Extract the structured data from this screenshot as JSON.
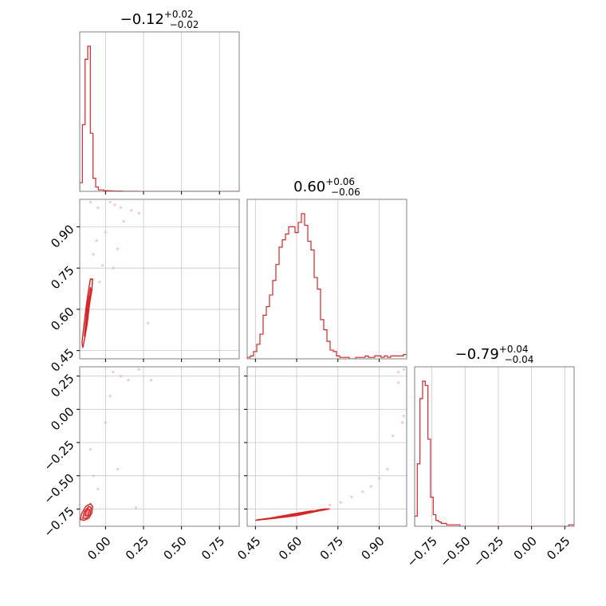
{
  "colors": {
    "accent": "#d62728",
    "frame": "#808080",
    "grid": "#c8c8c8",
    "scatter": "#f4b9ba"
  },
  "chart_data": {
    "type": "corner",
    "grid": true,
    "parameters": [
      {
        "median": "−0.12",
        "plus": "+0.02",
        "minus": "−0.02",
        "range": [
          -0.17,
          0.88
        ]
      },
      {
        "median": "0.60",
        "plus": "+0.06",
        "minus": "−0.06",
        "range": [
          0.42,
          1.0
        ]
      },
      {
        "median": "−0.79",
        "plus": "+0.04",
        "minus": "−0.04",
        "range": [
          -0.88,
          0.32
        ]
      }
    ],
    "ticks": [
      {
        "values": [
          0.0,
          0.25,
          0.5,
          0.75
        ],
        "labels": [
          "0.00",
          "0.25",
          "0.50",
          "0.75"
        ]
      },
      {
        "values": [
          0.45,
          0.6,
          0.75,
          0.9
        ],
        "labels": [
          "0.45",
          "0.60",
          "0.75",
          "0.90"
        ]
      },
      {
        "values": [
          -0.75,
          -0.5,
          -0.25,
          0.0,
          0.25
        ],
        "labels": [
          "−0.75",
          "−0.50",
          "−0.25",
          "0.00",
          "0.25"
        ]
      }
    ],
    "histograms": [
      {
        "param": 0,
        "bin_start": -0.17,
        "bin_width": 0.0175,
        "counts": [
          0.06,
          0.46,
          0.91,
          1.0,
          0.4,
          0.09,
          0.03,
          0.01,
          0.01,
          0.005,
          0.005,
          0.004,
          0.003,
          0.002,
          0.002,
          0.002,
          0.001,
          0.001,
          0.001,
          0.001,
          0.001,
          0.001,
          0.0,
          0.0,
          0.0,
          0.0,
          0.0,
          0.0,
          0.0,
          0.0,
          0.0,
          0.0,
          0.0,
          0.0,
          0.0,
          0.0,
          0.0,
          0.0,
          0.0,
          0.0,
          0.0,
          0.0,
          0.0,
          0.0,
          0.0,
          0.0,
          0.0,
          0.0,
          0.0,
          0.0,
          0.0,
          0.0,
          0.0,
          0.0,
          0.0,
          0.0,
          0.0,
          0.0,
          0.0,
          0.0
        ]
      },
      {
        "param": 1,
        "bin_start": 0.42,
        "bin_width": 0.0116,
        "counts": [
          0.01,
          0.02,
          0.05,
          0.1,
          0.17,
          0.3,
          0.36,
          0.44,
          0.54,
          0.65,
          0.77,
          0.82,
          0.86,
          0.91,
          0.91,
          0.87,
          0.94,
          1.0,
          0.92,
          0.81,
          0.75,
          0.56,
          0.48,
          0.27,
          0.2,
          0.12,
          0.06,
          0.05,
          0.02,
          0.01,
          0.01,
          0.01,
          0.0,
          0.0,
          0.01,
          0.01,
          0.01,
          0.02,
          0.01,
          0.01,
          0.02,
          0.02,
          0.01,
          0.02,
          0.01,
          0.02,
          0.02,
          0.02,
          0.02,
          0.03
        ]
      },
      {
        "param": 2,
        "bin_start": -0.88,
        "bin_width": 0.02,
        "counts": [
          0.07,
          0.43,
          0.88,
          1.0,
          0.97,
          0.6,
          0.2,
          0.08,
          0.04,
          0.03,
          0.02,
          0.02,
          0.01,
          0.01,
          0.01,
          0.01,
          0.01,
          0.0,
          0.0,
          0.0,
          0.0,
          0.0,
          0.0,
          0.0,
          0.0,
          0.0,
          0.0,
          0.0,
          0.0,
          0.0,
          0.0,
          0.0,
          0.0,
          0.0,
          0.0,
          0.0,
          0.0,
          0.0,
          0.0,
          0.0,
          0.0,
          0.0,
          0.0,
          0.0,
          0.0,
          0.0,
          0.0,
          0.0,
          0.0,
          0.0,
          0.0,
          0.0,
          0.0,
          0.0,
          0.0,
          0.0,
          0.0,
          0.0,
          0.01,
          0.01
        ]
      }
    ],
    "pairs": [
      {
        "x_param": 0,
        "y_param": 1,
        "contours": [
          {
            "x": [
              -0.15,
              -0.135,
              -0.12,
              -0.105,
              -0.09,
              -0.085,
              -0.1,
              -0.115,
              -0.13,
              -0.145,
              -0.155,
              -0.15
            ],
            "y": [
              0.46,
              0.5,
              0.55,
              0.62,
              0.67,
              0.71,
              0.71,
              0.66,
              0.6,
              0.53,
              0.48,
              0.46
            ]
          },
          {
            "x": [
              -0.14,
              -0.125,
              -0.11,
              -0.095,
              -0.1,
              -0.115,
              -0.13,
              -0.14
            ],
            "y": [
              0.5,
              0.55,
              0.61,
              0.67,
              0.68,
              0.63,
              0.56,
              0.5
            ]
          },
          {
            "x": [
              -0.13,
              -0.115,
              -0.105,
              -0.11,
              -0.125,
              -0.13
            ],
            "y": [
              0.54,
              0.59,
              0.64,
              0.65,
              0.6,
              0.54
            ]
          },
          {
            "x": [
              -0.122,
              -0.112,
              -0.116,
              -0.124,
              -0.122
            ],
            "y": [
              0.57,
              0.61,
              0.63,
              0.6,
              0.57
            ]
          }
        ],
        "scatter_x": [
          -0.08,
          -0.05,
          0.03,
          0.06,
          0.1,
          0.17,
          0.22,
          0.0,
          -0.06,
          0.28,
          -0.02,
          0.05,
          -0.1,
          -0.04,
          0.08,
          0.12
        ],
        "scatter_y": [
          0.8,
          0.97,
          0.99,
          0.98,
          0.97,
          0.96,
          0.95,
          0.88,
          0.85,
          0.55,
          0.76,
          0.75,
          0.99,
          0.7,
          0.82,
          0.92
        ]
      },
      {
        "x_param": 0,
        "y_param": 2,
        "contours": [
          {
            "x": [
              -0.165,
              -0.14,
              -0.11,
              -0.09,
              -0.085,
              -0.1,
              -0.13,
              -0.16,
              -0.165
            ],
            "y": [
              -0.83,
              -0.835,
              -0.82,
              -0.78,
              -0.73,
              -0.71,
              -0.73,
              -0.79,
              -0.83
            ]
          },
          {
            "x": [
              -0.15,
              -0.125,
              -0.1,
              -0.095,
              -0.11,
              -0.14,
              -0.15
            ],
            "y": [
              -0.82,
              -0.82,
              -0.79,
              -0.74,
              -0.73,
              -0.77,
              -0.82
            ]
          },
          {
            "x": [
              -0.135,
              -0.115,
              -0.105,
              -0.115,
              -0.13,
              -0.135
            ],
            "y": [
              -0.8,
              -0.8,
              -0.76,
              -0.75,
              -0.77,
              -0.8
            ]
          }
        ],
        "scatter_x": [
          -0.05,
          0.03,
          0.05,
          0.1,
          0.15,
          0.22,
          0.3,
          0.2,
          -0.08,
          0.0,
          0.08,
          -0.1
        ],
        "scatter_y": [
          -0.6,
          0.1,
          0.28,
          0.25,
          0.22,
          0.3,
          0.22,
          -0.74,
          -0.5,
          -0.1,
          -0.45,
          -0.3
        ]
      },
      {
        "x_param": 1,
        "y_param": 2,
        "contours": [
          {
            "x": [
              0.45,
              0.52,
              0.6,
              0.68,
              0.72,
              0.7,
              0.62,
              0.54,
              0.46,
              0.45
            ],
            "y": [
              -0.835,
              -0.82,
              -0.8,
              -0.765,
              -0.75,
              -0.75,
              -0.78,
              -0.81,
              -0.83,
              -0.835
            ]
          },
          {
            "x": [
              0.48,
              0.55,
              0.62,
              0.67,
              0.65,
              0.58,
              0.5,
              0.48
            ],
            "y": [
              -0.825,
              -0.81,
              -0.785,
              -0.765,
              -0.765,
              -0.79,
              -0.82,
              -0.825
            ]
          },
          {
            "x": [
              0.52,
              0.58,
              0.63,
              0.62,
              0.56,
              0.52
            ],
            "y": [
              -0.815,
              -0.8,
              -0.78,
              -0.78,
              -0.8,
              -0.815
            ]
          },
          {
            "x": [
              0.56,
              0.6,
              0.61,
              0.57,
              0.56
            ],
            "y": [
              -0.805,
              -0.795,
              -0.785,
              -0.795,
              -0.805
            ]
          }
        ],
        "scatter_x": [
          0.72,
          0.76,
          0.8,
          0.84,
          0.87,
          0.9,
          0.93,
          0.95,
          0.97,
          0.99,
          0.985,
          0.97,
          0.95,
          0.99
        ],
        "scatter_y": [
          -0.72,
          -0.7,
          -0.66,
          -0.62,
          -0.58,
          -0.52,
          -0.45,
          -0.2,
          0.2,
          0.3,
          -0.1,
          0.28,
          0.35,
          -0.05
        ]
      }
    ]
  }
}
